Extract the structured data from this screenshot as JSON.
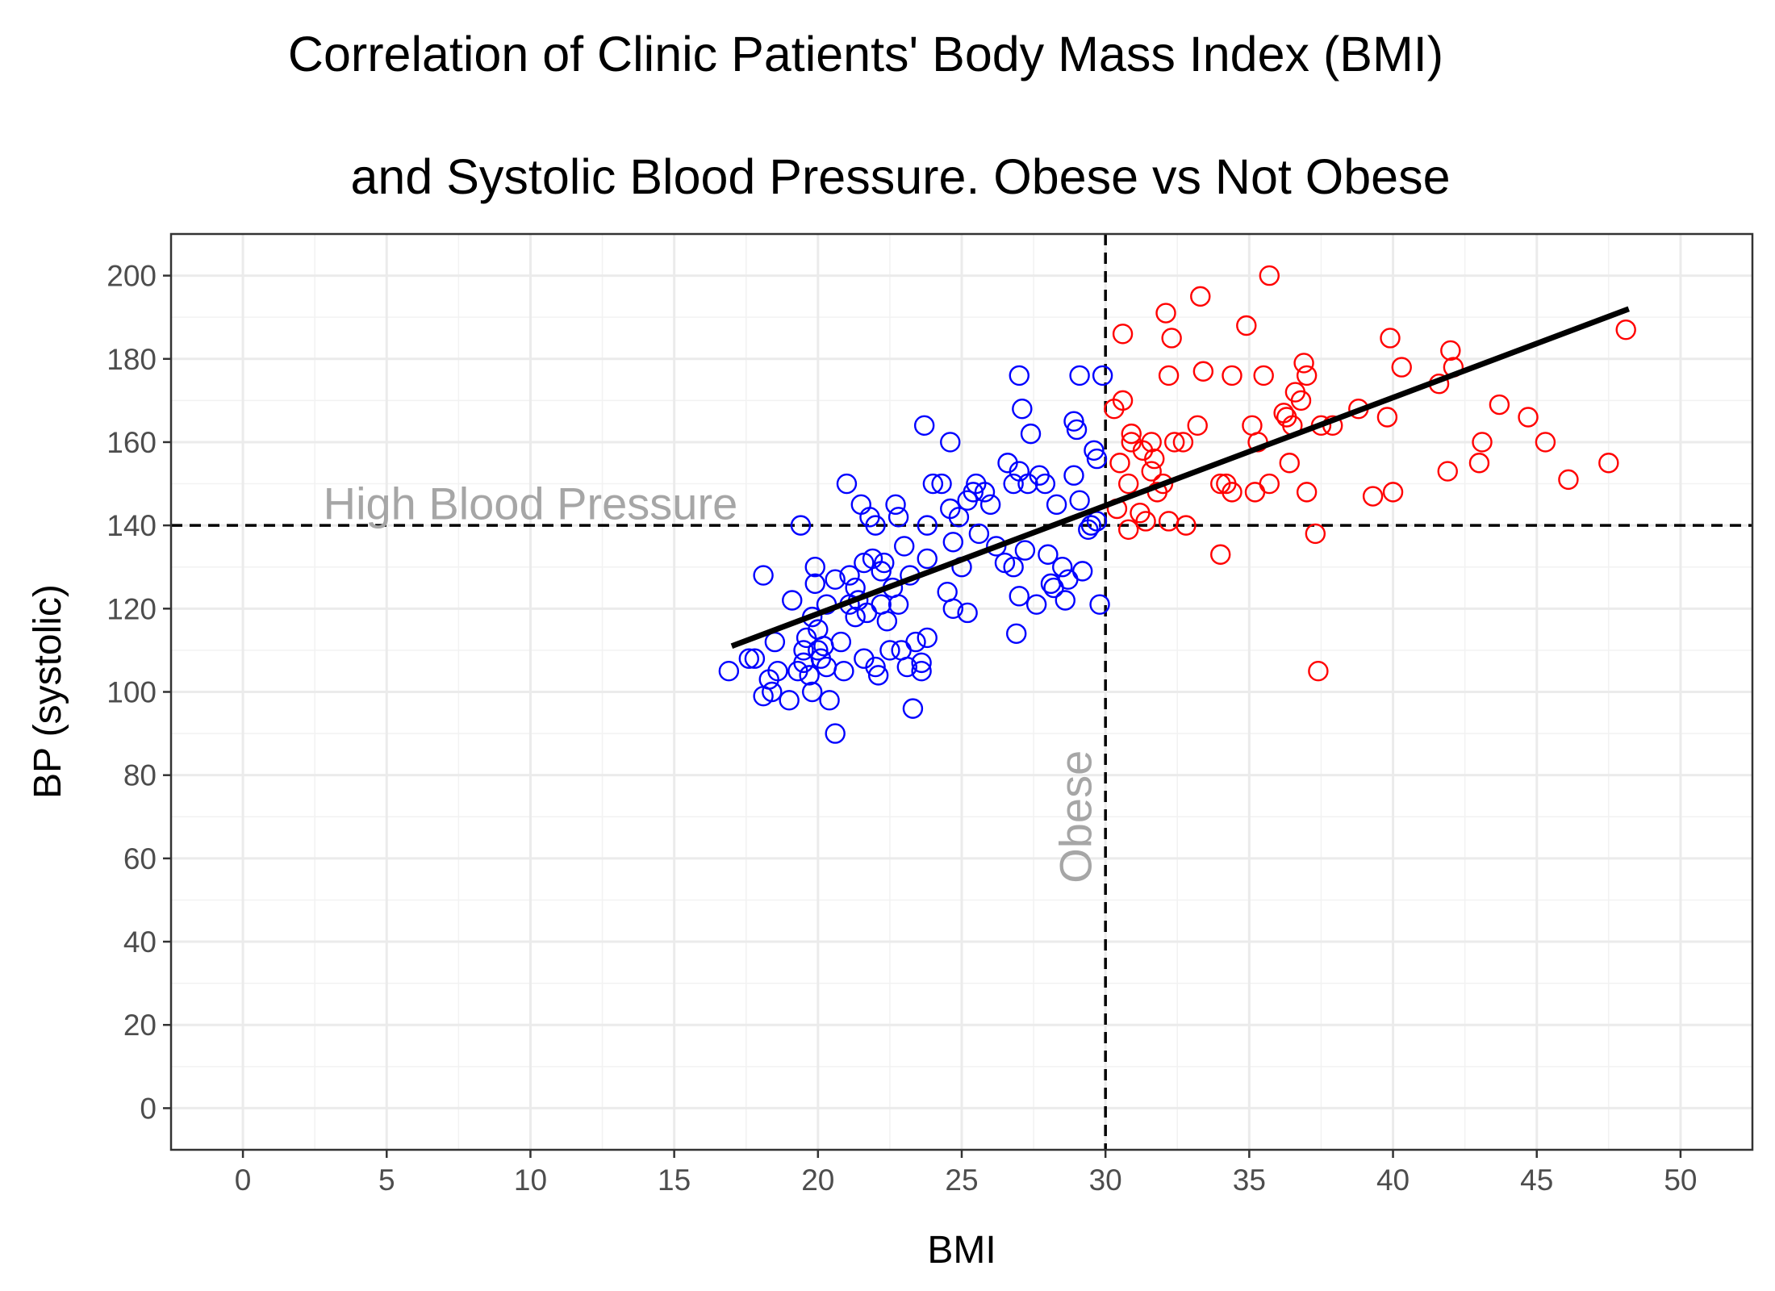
{
  "chart_data": {
    "type": "scatter",
    "title_line1": "Correlation of Clinic Patients' Body Mass Index (BMI)",
    "title_line2": "and Systolic Blood Pressure. Obese vs Not Obese",
    "xlabel": "BMI",
    "ylabel": "BP (systolic)",
    "xlim": [
      -2.5,
      52.5
    ],
    "ylim": [
      -10,
      210
    ],
    "x_ticks": [
      0,
      5,
      10,
      15,
      20,
      25,
      30,
      35,
      40,
      45,
      50
    ],
    "y_ticks": [
      0,
      20,
      40,
      60,
      80,
      100,
      120,
      140,
      160,
      180,
      200
    ],
    "grid": true,
    "legend": "none",
    "colors": {
      "not_obese": "#0000ff",
      "obese": "#ff0000",
      "trend": "#000000",
      "reference": "#000000",
      "annotation": "#a6a6a6"
    },
    "reference_lines": {
      "x": 30,
      "y": 140
    },
    "annotations": {
      "high_bp": {
        "text": "High Blood Pressure",
        "x": 10,
        "y": 145
      },
      "obese": {
        "text": "Obese",
        "x": 29,
        "y": 70
      }
    },
    "trend_line": {
      "x": [
        17,
        48.2
      ],
      "y": [
        111,
        192
      ]
    },
    "series": [
      {
        "group": "not_obese",
        "points": [
          [
            16.9,
            105
          ],
          [
            17.6,
            108
          ],
          [
            17.8,
            108
          ],
          [
            18.1,
            99
          ],
          [
            18.1,
            128
          ],
          [
            18.3,
            103
          ],
          [
            18.4,
            100
          ],
          [
            18.5,
            112
          ],
          [
            18.6,
            105
          ],
          [
            19.0,
            98
          ],
          [
            19.1,
            122
          ],
          [
            19.3,
            105
          ],
          [
            19.4,
            140
          ],
          [
            19.5,
            110
          ],
          [
            19.5,
            107
          ],
          [
            19.6,
            113
          ],
          [
            19.7,
            104
          ],
          [
            19.8,
            118
          ],
          [
            19.8,
            100
          ],
          [
            19.9,
            130
          ],
          [
            19.9,
            126
          ],
          [
            20.0,
            115
          ],
          [
            20.0,
            110
          ],
          [
            20.1,
            108
          ],
          [
            20.2,
            111
          ],
          [
            20.3,
            106
          ],
          [
            20.3,
            121
          ],
          [
            20.4,
            98
          ],
          [
            20.6,
            90
          ],
          [
            20.6,
            127
          ],
          [
            20.8,
            112
          ],
          [
            20.9,
            105
          ],
          [
            21.0,
            150
          ],
          [
            21.1,
            121
          ],
          [
            21.1,
            128
          ],
          [
            21.3,
            125
          ],
          [
            21.3,
            118
          ],
          [
            21.4,
            122
          ],
          [
            21.5,
            145
          ],
          [
            21.6,
            108
          ],
          [
            21.6,
            131
          ],
          [
            21.7,
            119
          ],
          [
            21.8,
            142
          ],
          [
            21.9,
            132
          ],
          [
            22.0,
            106
          ],
          [
            22.0,
            140
          ],
          [
            22.1,
            104
          ],
          [
            22.2,
            121
          ],
          [
            22.2,
            129
          ],
          [
            22.3,
            131
          ],
          [
            22.4,
            117
          ],
          [
            22.5,
            110
          ],
          [
            22.6,
            125
          ],
          [
            22.7,
            145
          ],
          [
            22.8,
            142
          ],
          [
            22.8,
            121
          ],
          [
            22.9,
            110
          ],
          [
            23.0,
            135
          ],
          [
            23.1,
            106
          ],
          [
            23.2,
            128
          ],
          [
            23.3,
            96
          ],
          [
            23.4,
            112
          ],
          [
            23.6,
            107
          ],
          [
            23.6,
            105
          ],
          [
            23.7,
            164
          ],
          [
            23.8,
            140
          ],
          [
            23.8,
            132
          ],
          [
            23.8,
            113
          ],
          [
            24.0,
            150
          ],
          [
            24.3,
            150
          ],
          [
            24.5,
            124
          ],
          [
            24.6,
            160
          ],
          [
            24.6,
            144
          ],
          [
            24.7,
            136
          ],
          [
            24.7,
            120
          ],
          [
            24.9,
            142
          ],
          [
            25.0,
            130
          ],
          [
            25.2,
            146
          ],
          [
            25.2,
            119
          ],
          [
            25.4,
            148
          ],
          [
            25.5,
            150
          ],
          [
            25.6,
            138
          ],
          [
            25.8,
            148
          ],
          [
            26.0,
            145
          ],
          [
            26.2,
            135
          ],
          [
            26.5,
            131
          ],
          [
            26.6,
            155
          ],
          [
            26.8,
            150
          ],
          [
            26.8,
            130
          ],
          [
            26.9,
            114
          ],
          [
            27.0,
            176
          ],
          [
            27.0,
            153
          ],
          [
            27.0,
            123
          ],
          [
            27.1,
            168
          ],
          [
            27.2,
            134
          ],
          [
            27.3,
            150
          ],
          [
            27.4,
            162
          ],
          [
            27.6,
            121
          ],
          [
            27.7,
            152
          ],
          [
            27.9,
            150
          ],
          [
            28.0,
            133
          ],
          [
            28.1,
            126
          ],
          [
            28.2,
            125
          ],
          [
            28.3,
            145
          ],
          [
            28.5,
            130
          ],
          [
            28.6,
            122
          ],
          [
            28.7,
            127
          ],
          [
            28.9,
            165
          ],
          [
            28.9,
            152
          ],
          [
            29.0,
            163
          ],
          [
            29.1,
            176
          ],
          [
            29.1,
            146
          ],
          [
            29.2,
            129
          ],
          [
            29.5,
            140
          ],
          [
            29.6,
            158
          ],
          [
            29.7,
            156
          ],
          [
            29.8,
            121
          ],
          [
            29.9,
            176
          ],
          [
            29.4,
            139
          ],
          [
            29.7,
            141
          ]
        ]
      },
      {
        "group": "obese",
        "points": [
          [
            30.3,
            168
          ],
          [
            30.4,
            144
          ],
          [
            30.5,
            155
          ],
          [
            30.6,
            186
          ],
          [
            30.6,
            170
          ],
          [
            30.8,
            139
          ],
          [
            30.8,
            150
          ],
          [
            30.9,
            162
          ],
          [
            30.9,
            160
          ],
          [
            31.2,
            143
          ],
          [
            31.4,
            141
          ],
          [
            31.6,
            160
          ],
          [
            31.6,
            153
          ],
          [
            31.7,
            156
          ],
          [
            31.8,
            148
          ],
          [
            32.0,
            150
          ],
          [
            32.1,
            191
          ],
          [
            32.2,
            141
          ],
          [
            32.2,
            176
          ],
          [
            32.3,
            185
          ],
          [
            32.4,
            160
          ],
          [
            32.7,
            160
          ],
          [
            32.8,
            140
          ],
          [
            33.2,
            164
          ],
          [
            33.3,
            195
          ],
          [
            33.4,
            177
          ],
          [
            34.0,
            133
          ],
          [
            34.2,
            150
          ],
          [
            34.4,
            148
          ],
          [
            34.4,
            176
          ],
          [
            34.9,
            188
          ],
          [
            35.1,
            164
          ],
          [
            35.2,
            148
          ],
          [
            35.3,
            160
          ],
          [
            35.5,
            176
          ],
          [
            35.7,
            150
          ],
          [
            35.7,
            200
          ],
          [
            36.2,
            167
          ],
          [
            36.4,
            155
          ],
          [
            36.5,
            164
          ],
          [
            36.6,
            172
          ],
          [
            36.8,
            170
          ],
          [
            36.9,
            179
          ],
          [
            37.0,
            148
          ],
          [
            37.0,
            176
          ],
          [
            37.3,
            138
          ],
          [
            37.4,
            105
          ],
          [
            37.5,
            164
          ],
          [
            37.9,
            164
          ],
          [
            38.8,
            168
          ],
          [
            39.3,
            147
          ],
          [
            39.8,
            166
          ],
          [
            39.9,
            185
          ],
          [
            40.0,
            148
          ],
          [
            40.3,
            178
          ],
          [
            41.6,
            174
          ],
          [
            41.9,
            153
          ],
          [
            42.0,
            182
          ],
          [
            42.1,
            178
          ],
          [
            43.0,
            155
          ],
          [
            43.1,
            160
          ],
          [
            43.7,
            169
          ],
          [
            44.7,
            166
          ],
          [
            45.3,
            160
          ],
          [
            46.1,
            151
          ],
          [
            47.5,
            155
          ],
          [
            48.1,
            187
          ],
          [
            36.3,
            166
          ],
          [
            31.3,
            158
          ],
          [
            34.0,
            150
          ]
        ]
      }
    ]
  }
}
